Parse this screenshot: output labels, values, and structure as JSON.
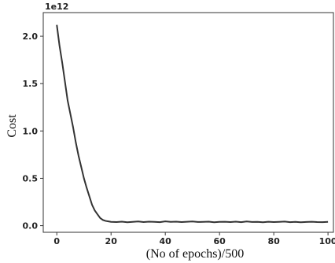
{
  "chart_data": {
    "type": "line",
    "title": "",
    "xlabel": "(No of epochs)/500",
    "ylabel": "Cost",
    "y_offset_text": "1e12",
    "xlim": [
      -5,
      102
    ],
    "ylim": [
      -0.07,
      2.25
    ],
    "grid": false,
    "x_ticks": [
      0,
      20,
      40,
      60,
      80,
      100
    ],
    "x_tick_labels": [
      "0",
      "20",
      "40",
      "60",
      "80",
      "100"
    ],
    "y_ticks": [
      0.0,
      0.5,
      1.0,
      1.5,
      2.0
    ],
    "y_tick_labels": [
      "0.0",
      "0.5",
      "1.0",
      "1.5",
      "2.0"
    ],
    "series": [
      {
        "color": "#333333",
        "x": [
          0,
          1,
          2,
          3,
          4,
          5,
          6,
          7,
          8,
          9,
          10,
          11,
          12,
          13,
          14,
          15,
          16,
          17,
          18,
          19,
          20,
          22,
          24,
          26,
          28,
          30,
          32,
          34,
          36,
          38,
          40,
          42,
          44,
          46,
          48,
          50,
          52,
          54,
          56,
          58,
          60,
          62,
          64,
          66,
          68,
          70,
          72,
          74,
          76,
          78,
          80,
          82,
          84,
          86,
          88,
          90,
          92,
          94,
          96,
          98,
          100
        ],
        "y": [
          2.12,
          1.9,
          1.72,
          1.52,
          1.32,
          1.18,
          1.04,
          0.88,
          0.74,
          0.62,
          0.5,
          0.4,
          0.31,
          0.22,
          0.16,
          0.12,
          0.08,
          0.06,
          0.05,
          0.045,
          0.04,
          0.038,
          0.042,
          0.036,
          0.04,
          0.044,
          0.038,
          0.042,
          0.04,
          0.037,
          0.045,
          0.04,
          0.042,
          0.038,
          0.041,
          0.044,
          0.039,
          0.04,
          0.042,
          0.036,
          0.04,
          0.041,
          0.038,
          0.042,
          0.037,
          0.044,
          0.039,
          0.04,
          0.036,
          0.041,
          0.038,
          0.04,
          0.043,
          0.037,
          0.04,
          0.036,
          0.039,
          0.041,
          0.038,
          0.037,
          0.04
        ]
      }
    ]
  }
}
